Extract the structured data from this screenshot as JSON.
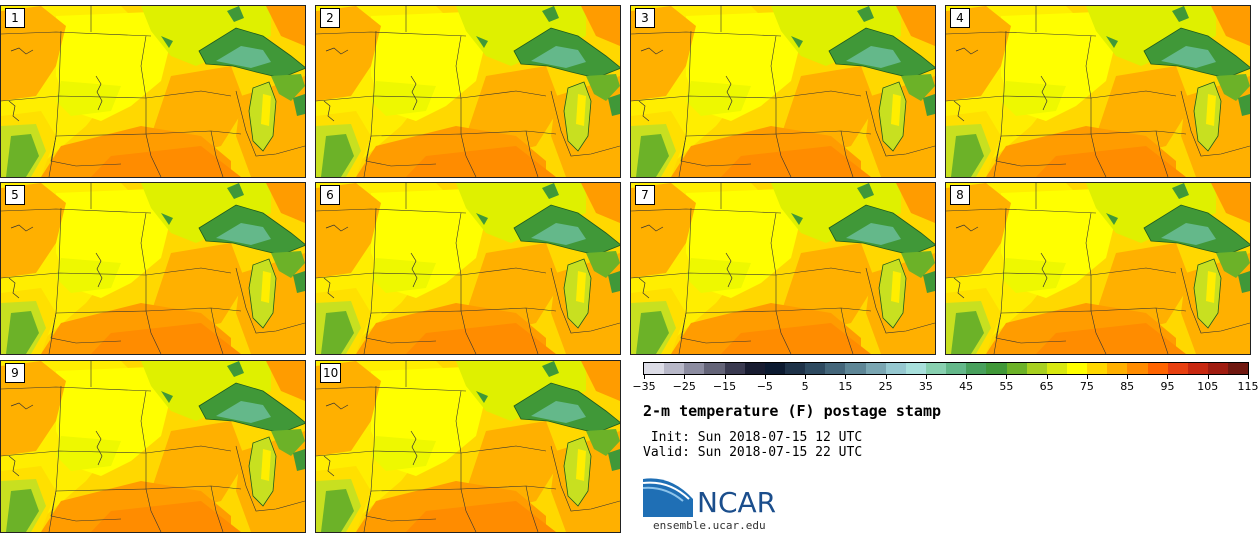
{
  "panels": [
    {
      "label": "1"
    },
    {
      "label": "2"
    },
    {
      "label": "3"
    },
    {
      "label": "4"
    },
    {
      "label": "5"
    },
    {
      "label": "6"
    },
    {
      "label": "7"
    },
    {
      "label": "8"
    },
    {
      "label": "9"
    },
    {
      "label": "10"
    }
  ],
  "colorbar": {
    "colors": [
      "#dcdce6",
      "#b8b8c8",
      "#8c8ca0",
      "#646478",
      "#3a3a50",
      "#181c30",
      "#0c1a30",
      "#1e3248",
      "#2e4a60",
      "#44667a",
      "#5e8696",
      "#7aa6b2",
      "#96c8d0",
      "#a8e0dc",
      "#88d0b0",
      "#64b88a",
      "#48a05c",
      "#409838",
      "#6cb228",
      "#a8d020",
      "#d8e810",
      "#ffff00",
      "#ffd800",
      "#ffb000",
      "#ff8c00",
      "#ff6400",
      "#e84010",
      "#c82810",
      "#a01c10",
      "#701810"
    ],
    "ticks": [
      "−35",
      "−25",
      "−15",
      "−5",
      "5",
      "15",
      "25",
      "35",
      "45",
      "55",
      "65",
      "75",
      "85",
      "95",
      "105",
      "115"
    ]
  },
  "title": "2-m temperature (F) postage stamp",
  "init": " Init: Sun 2018-07-15 12 UTC",
  "valid": "Valid: Sun 2018-07-15 22 UTC",
  "logo": {
    "text": "NCAR",
    "url": "ensemble.ucar.edu"
  }
}
